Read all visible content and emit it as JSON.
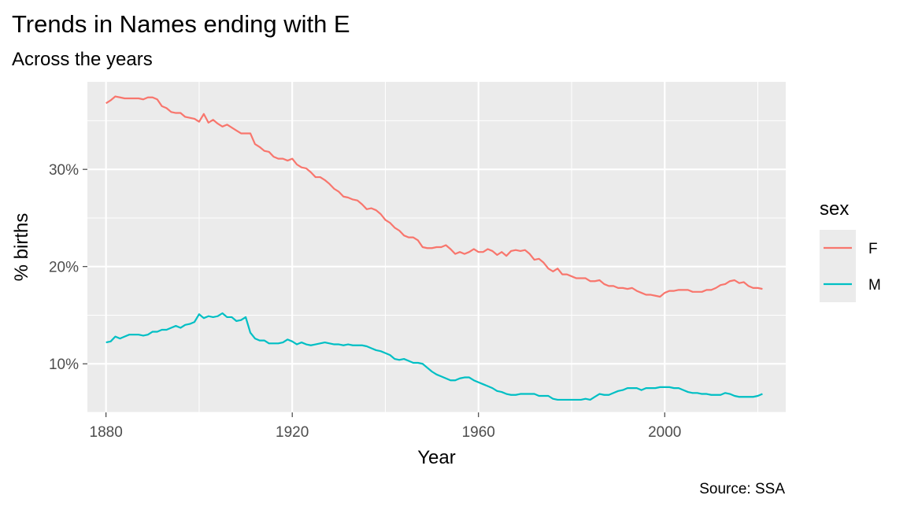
{
  "chart_data": {
    "type": "line",
    "title": "Trends in Names ending with E",
    "subtitle": "Across the years",
    "xlabel": "Year",
    "ylabel": "% births",
    "caption": "Source: SSA",
    "xlim": [
      1876,
      2026
    ],
    "ylim": [
      5,
      39
    ],
    "x_ticks": [
      1880,
      1920,
      1960,
      2000
    ],
    "x_tick_labels": [
      "1880",
      "1920",
      "1960",
      "2000"
    ],
    "y_ticks": [
      10,
      20,
      30
    ],
    "y_tick_labels": [
      "10%",
      "20%",
      "30%"
    ],
    "grid": true,
    "legend": {
      "title": "sex",
      "position": "right"
    },
    "series": [
      {
        "name": "F",
        "color": "#F8766D",
        "x": [
          1880,
          1881,
          1882,
          1883,
          1884,
          1885,
          1886,
          1887,
          1888,
          1889,
          1890,
          1891,
          1892,
          1893,
          1894,
          1895,
          1896,
          1897,
          1898,
          1899,
          1900,
          1901,
          1902,
          1903,
          1904,
          1905,
          1906,
          1907,
          1908,
          1909,
          1910,
          1911,
          1912,
          1913,
          1914,
          1915,
          1916,
          1917,
          1918,
          1919,
          1920,
          1921,
          1922,
          1923,
          1924,
          1925,
          1926,
          1927,
          1928,
          1929,
          1930,
          1931,
          1932,
          1933,
          1934,
          1935,
          1936,
          1937,
          1938,
          1939,
          1940,
          1941,
          1942,
          1943,
          1944,
          1945,
          1946,
          1947,
          1948,
          1949,
          1950,
          1951,
          1952,
          1953,
          1954,
          1955,
          1956,
          1957,
          1958,
          1959,
          1960,
          1961,
          1962,
          1963,
          1964,
          1965,
          1966,
          1967,
          1968,
          1969,
          1970,
          1971,
          1972,
          1973,
          1974,
          1975,
          1976,
          1977,
          1978,
          1979,
          1980,
          1981,
          1982,
          1983,
          1984,
          1985,
          1986,
          1987,
          1988,
          1989,
          1990,
          1991,
          1992,
          1993,
          1994,
          1995,
          1996,
          1997,
          1998,
          1999,
          2000,
          2001,
          2002,
          2003,
          2004,
          2005,
          2006,
          2007,
          2008,
          2009,
          2010,
          2011,
          2012,
          2013,
          2014,
          2015,
          2016,
          2017,
          2018,
          2019,
          2020,
          2021
        ],
        "values": [
          36.8,
          37.1,
          37.5,
          37.4,
          37.3,
          37.3,
          37.3,
          37.3,
          37.2,
          37.4,
          37.4,
          37.2,
          36.5,
          36.3,
          35.9,
          35.8,
          35.8,
          35.4,
          35.3,
          35.2,
          34.9,
          35.7,
          34.8,
          35.1,
          34.7,
          34.4,
          34.6,
          34.3,
          34.0,
          33.7,
          33.7,
          33.7,
          32.6,
          32.3,
          31.9,
          31.8,
          31.3,
          31.1,
          31.1,
          30.9,
          31.1,
          30.5,
          30.2,
          30.1,
          29.7,
          29.2,
          29.2,
          28.9,
          28.5,
          28.0,
          27.7,
          27.2,
          27.1,
          26.9,
          26.8,
          26.4,
          25.9,
          26.0,
          25.8,
          25.4,
          24.8,
          24.5,
          24.0,
          23.7,
          23.2,
          23.0,
          23.0,
          22.7,
          22.0,
          21.9,
          21.9,
          22.0,
          22.0,
          22.2,
          21.8,
          21.3,
          21.5,
          21.3,
          21.5,
          21.8,
          21.5,
          21.5,
          21.8,
          21.6,
          21.2,
          21.5,
          21.1,
          21.6,
          21.7,
          21.6,
          21.7,
          21.3,
          20.7,
          20.8,
          20.4,
          19.8,
          19.5,
          19.8,
          19.2,
          19.2,
          19.0,
          18.8,
          18.8,
          18.8,
          18.5,
          18.5,
          18.6,
          18.2,
          18.0,
          18.0,
          17.8,
          17.8,
          17.7,
          17.8,
          17.5,
          17.3,
          17.1,
          17.1,
          17.0,
          16.9,
          17.3,
          17.5,
          17.5,
          17.6,
          17.6,
          17.6,
          17.4,
          17.4,
          17.4,
          17.6,
          17.6,
          17.8,
          18.1,
          18.2,
          18.5,
          18.6,
          18.3,
          18.4,
          18.0,
          17.8,
          17.8,
          17.7
        ]
      },
      {
        "name": "M",
        "color": "#00BFC4",
        "x": [
          1880,
          1881,
          1882,
          1883,
          1884,
          1885,
          1886,
          1887,
          1888,
          1889,
          1890,
          1891,
          1892,
          1893,
          1894,
          1895,
          1896,
          1897,
          1898,
          1899,
          1900,
          1901,
          1902,
          1903,
          1904,
          1905,
          1906,
          1907,
          1908,
          1909,
          1910,
          1911,
          1912,
          1913,
          1914,
          1915,
          1916,
          1917,
          1918,
          1919,
          1920,
          1921,
          1922,
          1923,
          1924,
          1925,
          1926,
          1927,
          1928,
          1929,
          1930,
          1931,
          1932,
          1933,
          1934,
          1935,
          1936,
          1937,
          1938,
          1939,
          1940,
          1941,
          1942,
          1943,
          1944,
          1945,
          1946,
          1947,
          1948,
          1949,
          1950,
          1951,
          1952,
          1953,
          1954,
          1955,
          1956,
          1957,
          1958,
          1959,
          1960,
          1961,
          1962,
          1963,
          1964,
          1965,
          1966,
          1967,
          1968,
          1969,
          1970,
          1971,
          1972,
          1973,
          1974,
          1975,
          1976,
          1977,
          1978,
          1979,
          1980,
          1981,
          1982,
          1983,
          1984,
          1985,
          1986,
          1987,
          1988,
          1989,
          1990,
          1991,
          1992,
          1993,
          1994,
          1995,
          1996,
          1997,
          1998,
          1999,
          2000,
          2001,
          2002,
          2003,
          2004,
          2005,
          2006,
          2007,
          2008,
          2009,
          2010,
          2011,
          2012,
          2013,
          2014,
          2015,
          2016,
          2017,
          2018,
          2019,
          2020,
          2021
        ],
        "values": [
          12.2,
          12.3,
          12.8,
          12.6,
          12.8,
          13.0,
          13.0,
          13.0,
          12.9,
          13.0,
          13.3,
          13.3,
          13.5,
          13.5,
          13.7,
          13.9,
          13.7,
          14.0,
          14.1,
          14.3,
          15.1,
          14.7,
          14.9,
          14.8,
          14.9,
          15.2,
          14.8,
          14.8,
          14.4,
          14.5,
          14.8,
          13.2,
          12.6,
          12.4,
          12.4,
          12.1,
          12.1,
          12.1,
          12.2,
          12.5,
          12.3,
          12.0,
          12.2,
          12.0,
          11.9,
          12.0,
          12.1,
          12.2,
          12.1,
          12.0,
          12.0,
          11.9,
          12.0,
          11.9,
          11.9,
          11.9,
          11.8,
          11.6,
          11.4,
          11.3,
          11.1,
          10.9,
          10.5,
          10.4,
          10.5,
          10.3,
          10.1,
          10.1,
          10.0,
          9.6,
          9.2,
          8.9,
          8.7,
          8.5,
          8.3,
          8.3,
          8.5,
          8.6,
          8.6,
          8.3,
          8.1,
          7.9,
          7.7,
          7.5,
          7.2,
          7.1,
          6.9,
          6.8,
          6.8,
          6.9,
          6.9,
          6.9,
          6.9,
          6.7,
          6.7,
          6.7,
          6.4,
          6.3,
          6.3,
          6.3,
          6.3,
          6.3,
          6.3,
          6.4,
          6.3,
          6.6,
          6.9,
          6.8,
          6.8,
          7.0,
          7.2,
          7.3,
          7.5,
          7.5,
          7.5,
          7.3,
          7.5,
          7.5,
          7.5,
          7.6,
          7.6,
          7.6,
          7.5,
          7.5,
          7.3,
          7.1,
          7.0,
          7.0,
          6.9,
          6.9,
          6.8,
          6.8,
          6.8,
          7.0,
          6.9,
          6.7,
          6.6,
          6.6,
          6.6,
          6.6,
          6.7,
          6.9
        ]
      }
    ]
  }
}
